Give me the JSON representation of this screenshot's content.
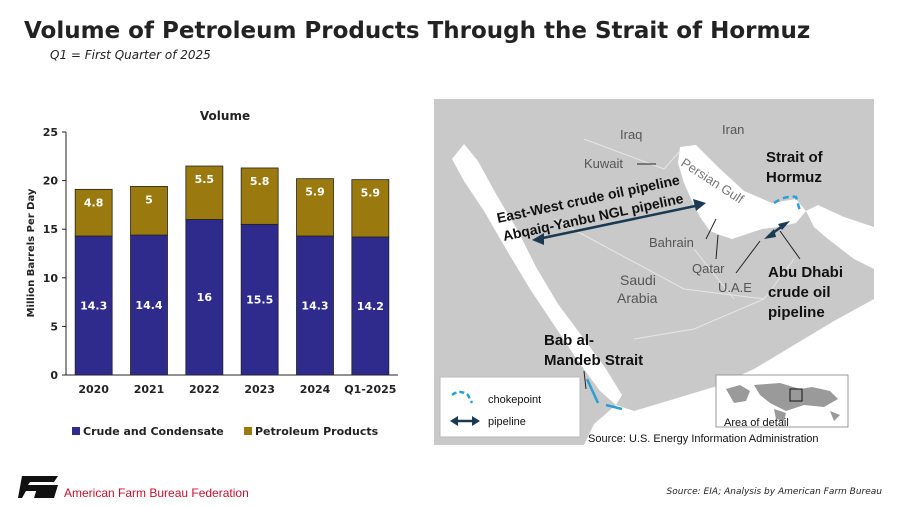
{
  "header": {
    "title": "Volume of Petroleum Products Through the Strait of Hormuz",
    "subtitle": "Q1 = First Quarter of 2025"
  },
  "chart_data": {
    "type": "bar",
    "stacked": true,
    "title": "Volume",
    "ylabel": "Million Barrels Per Day",
    "xlabel": "",
    "ylim": [
      0,
      25
    ],
    "yticks": [
      0,
      5,
      10,
      15,
      20,
      25
    ],
    "categories": [
      "2020",
      "2021",
      "2022",
      "2023",
      "2024",
      "Q1-2025"
    ],
    "series": [
      {
        "name": "Crude and Condensate",
        "color": "#2e2b8c",
        "values": [
          14.3,
          14.4,
          16,
          15.5,
          14.3,
          14.2
        ]
      },
      {
        "name": "Petroleum Products",
        "color": "#9a7a0f",
        "values": [
          4.8,
          5,
          5.5,
          5.8,
          5.9,
          5.9
        ]
      }
    ],
    "data_labels": [
      [
        "14.3",
        "14.4",
        "16",
        "15.5",
        "14.3",
        "14.2"
      ],
      [
        "4.8",
        "5",
        "5.5",
        "5.8",
        "5.9",
        "5.9"
      ]
    ],
    "legend_position": "bottom"
  },
  "map": {
    "labels": {
      "iraq": "Iraq",
      "iran": "Iran",
      "kuwait": "Kuwait",
      "persian_gulf": "Persian Gulf",
      "strait_hormuz_1": "Strait of",
      "strait_hormuz_2": "Hormuz",
      "pipeline_1": "East-West crude oil pipeline",
      "pipeline_2": "Abqaiq-Yanbu NGL pipeline",
      "bahrain": "Bahrain",
      "qatar": "Qatar",
      "uae": "U.A.E",
      "saudi_1": "Saudi",
      "saudi_2": "Arabia",
      "abu_dhabi_1": "Abu Dhabi",
      "abu_dhabi_2": "crude oil",
      "abu_dhabi_3": "pipeline",
      "bab_1": "Bab al-",
      "bab_2": "Mandeb Strait",
      "legend_chokepoint": "chokepoint",
      "legend_pipeline": "pipeline",
      "area_of_detail": "Area of detail",
      "source": "Source: U.S. Energy Information Administration"
    },
    "colors": {
      "land": "#c9c9c9",
      "water": "#ffffff",
      "pipeline": "#1b3a52",
      "chokepoint": "#2a9fd6"
    }
  },
  "footer": {
    "organization": "American Farm Bureau Federation",
    "source": "Source: EIA; Analysis by American Farm Bureau"
  }
}
